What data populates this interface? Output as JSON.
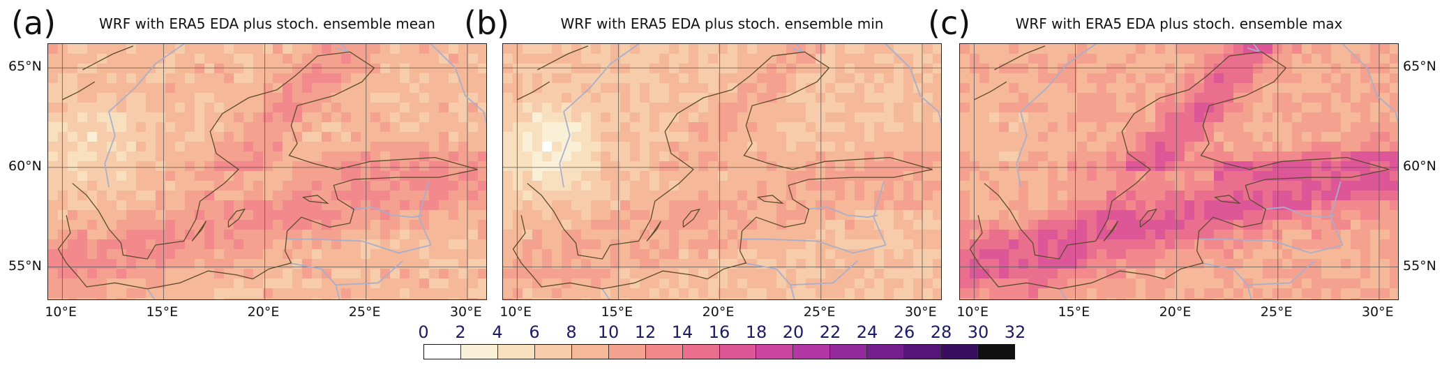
{
  "chart_data": [
    {
      "type": "heatmap",
      "panel_label": "(a)",
      "title": "WRF with ERA5 EDA plus stoch. ensemble mean",
      "x_ticks": [
        "10°E",
        "15°E",
        "20°E",
        "25°E",
        "30°E"
      ],
      "y_ticks": [
        "65°N",
        "60°N",
        "55°N"
      ],
      "y_tick_side": "left",
      "base_color": "#f6b892",
      "intensity": 0.55
    },
    {
      "type": "heatmap",
      "panel_label": "(b)",
      "title": "WRF with ERA5 EDA plus stoch. ensemble min",
      "x_ticks": [
        "10°E",
        "15°E",
        "20°E",
        "25°E",
        "30°E"
      ],
      "y_ticks": [],
      "y_tick_side": "none",
      "base_color": "#f4c9a6",
      "intensity": 0.35
    },
    {
      "type": "heatmap",
      "panel_label": "(c)",
      "title": "WRF with ERA5 EDA plus stoch. ensemble max",
      "x_ticks": [
        "10°E",
        "15°E",
        "20°E",
        "25°E",
        "30°E"
      ],
      "y_ticks": [
        "65°N",
        "60°N",
        "55°N"
      ],
      "y_tick_side": "right",
      "base_color": "#ec8a8c",
      "intensity": 0.95
    }
  ],
  "colorbar": {
    "labels": [
      "0",
      "2",
      "4",
      "6",
      "8",
      "10",
      "12",
      "14",
      "16",
      "18",
      "20",
      "22",
      "24",
      "26",
      "28",
      "30",
      "32"
    ],
    "colors": [
      "#ffffff",
      "#faefd7",
      "#f8dfbe",
      "#f6ccaa",
      "#f5b898",
      "#f5a190",
      "#f2898c",
      "#ea6f8e",
      "#dd5798",
      "#cc45a0",
      "#b236a4",
      "#93299c",
      "#731e8e",
      "#55157a",
      "#3a0e5e",
      "#111111"
    ]
  }
}
